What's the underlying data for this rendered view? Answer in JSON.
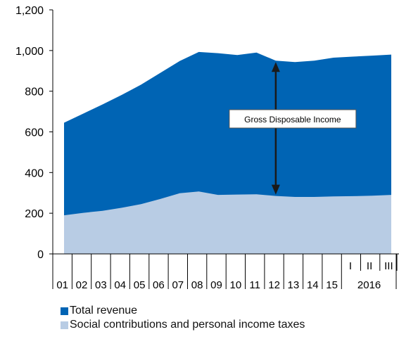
{
  "chart_data": {
    "type": "area",
    "title": "",
    "xlabel": "",
    "ylabel": "",
    "ylim": [
      0,
      1200
    ],
    "y_ticks": [
      0,
      200,
      400,
      600,
      800,
      1000,
      1200
    ],
    "y_tick_labels": [
      "0",
      "200",
      "400",
      "600",
      "800",
      "1,000",
      "1,200"
    ],
    "x_labels": [
      "01",
      "02",
      "03",
      "04",
      "05",
      "06",
      "07",
      "08",
      "09",
      "10",
      "11",
      "12",
      "13",
      "14",
      "15",
      "I",
      "II",
      "III"
    ],
    "year_label": "2016",
    "x": [
      2001,
      2002,
      2003,
      2004,
      2005,
      2006,
      2007,
      2008,
      2009,
      2010,
      2011,
      2012,
      2013,
      2014,
      2015,
      2016.25,
      2016.5,
      2016.75
    ],
    "series": [
      {
        "name": "Total revenue",
        "color": "#0064b4",
        "values": [
          645,
          690,
          735,
          782,
          832,
          890,
          948,
          993,
          987,
          978,
          990,
          950,
          943,
          950,
          965,
          970,
          975,
          980
        ]
      },
      {
        "name": "Social contributions and personal income taxes",
        "color": "#b8cce4",
        "values": [
          190,
          202,
          212,
          227,
          245,
          270,
          298,
          307,
          290,
          292,
          293,
          285,
          280,
          280,
          283,
          284,
          286,
          290
        ]
      }
    ],
    "annotation": {
      "text": "Gross Disposable Income",
      "x": 2012
    },
    "grid": false,
    "legend_position": "bottom-left"
  }
}
